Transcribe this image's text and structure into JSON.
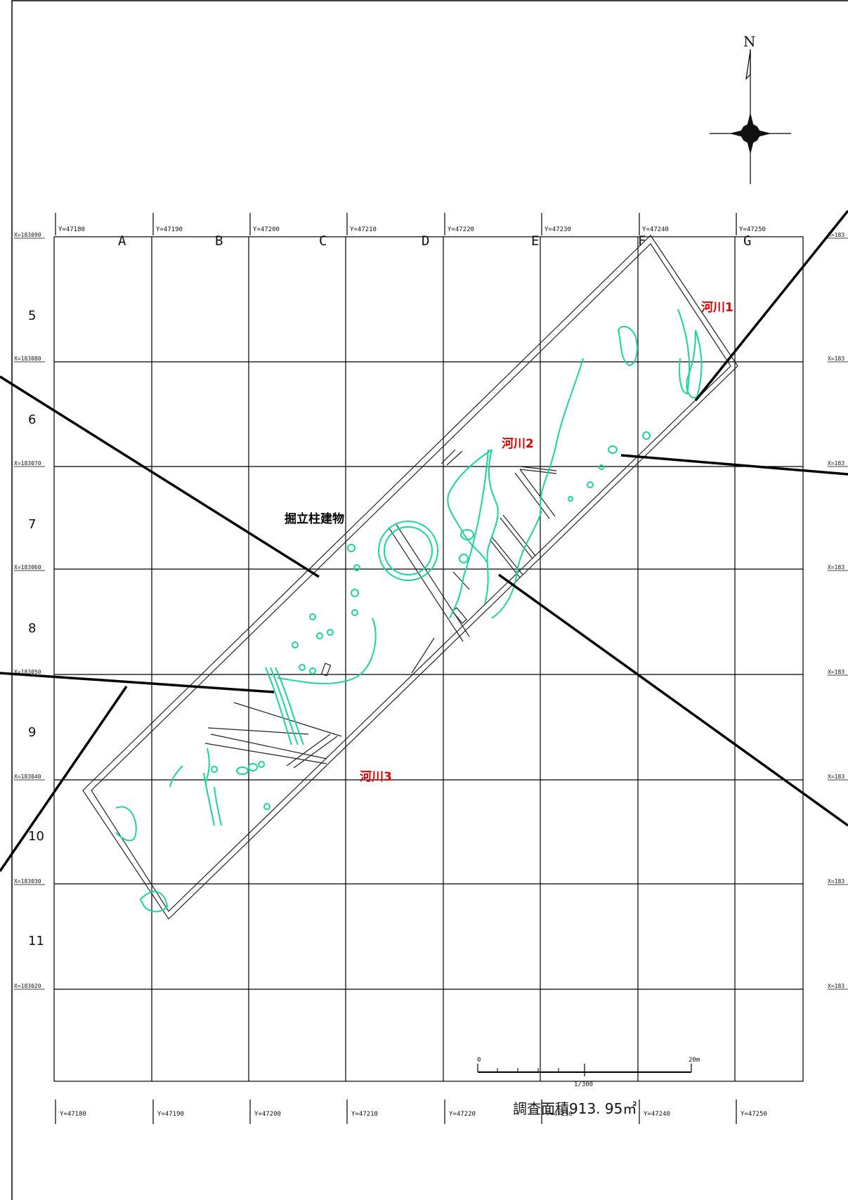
{
  "columns": [
    "A",
    "B",
    "C",
    "D",
    "E",
    "F",
    "G"
  ],
  "rows": [
    "5",
    "6",
    "7",
    "8",
    "9",
    "10",
    "11"
  ],
  "y_ticks_top": [
    "Y=47180",
    "Y=47190",
    "Y=47200",
    "Y=47210",
    "Y=47220",
    "Y=47230",
    "Y=47240",
    "Y=47250"
  ],
  "y_ticks_bottom": [
    "Y=47180",
    "Y=47190",
    "Y=47200",
    "Y=47210",
    "Y=47220",
    "Y=47230",
    "Y=47240",
    "Y=47250"
  ],
  "x_ticks": [
    "X=183090",
    "X=183080",
    "X=183070",
    "X=183060",
    "X=183050",
    "X=183040",
    "X=183030",
    "X=183020"
  ],
  "x_ticks_right": [
    "X=183",
    "X=183",
    "X=183",
    "X=183",
    "X=183",
    "X=183",
    "X=183",
    "X=183"
  ],
  "labels": {
    "river1": "河川1",
    "river2": "河川2",
    "river3": "河川3",
    "building": "掘立柱建物"
  },
  "north": "N",
  "scale": {
    "start": "0",
    "end": "20m",
    "ratio": "1/300"
  },
  "survey_area": "調査面積913. 95㎡",
  "colors": {
    "grid": "#000000",
    "feature": "#19d896",
    "label": "#e60000"
  }
}
